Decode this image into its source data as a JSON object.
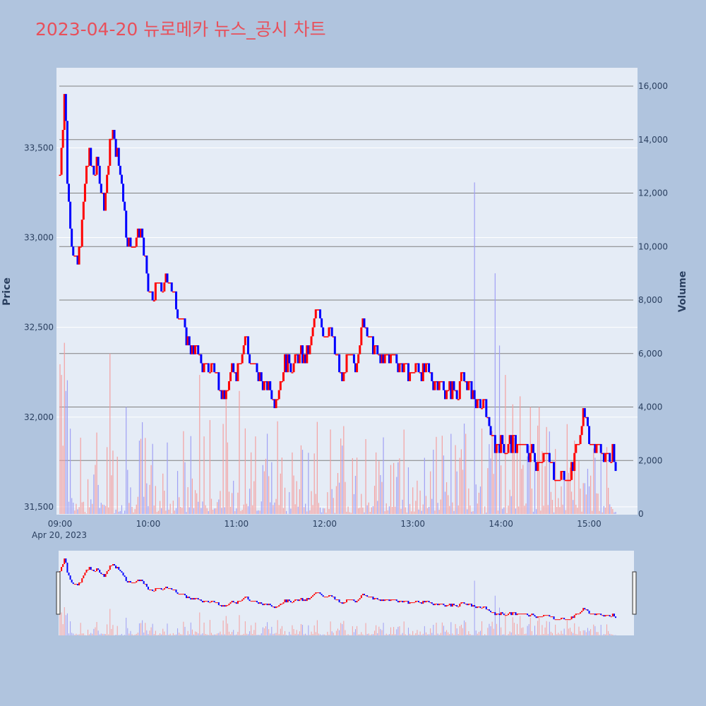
{
  "title": "2023-04-20 뉴로메카 뉴스_공시 차트",
  "colors": {
    "background": "#b0c4de",
    "plot_bg": "#e5ecf6",
    "up": "#ff0000",
    "down": "#0000ff",
    "up_volume": "#f4a0a0",
    "down_volume": "#a0a0f4",
    "title": "#e8505b",
    "grid": "#ffffff",
    "volume_grid": "#808080"
  },
  "chart_data": {
    "type": "candlestick",
    "x_range": [
      "09:00",
      "15:30"
    ],
    "date_label": "Apr 20, 2023",
    "x_ticks": [
      "09:00",
      "10:00",
      "11:00",
      "12:00",
      "13:00",
      "14:00",
      "15:00"
    ],
    "price_axis": {
      "label": "Price",
      "range": [
        31480,
        33950
      ],
      "ticks": [
        31500,
        32000,
        32500,
        33000,
        33500
      ],
      "tick_labels": [
        "31,500",
        "32,000",
        "32,500",
        "33,000",
        "33,500"
      ]
    },
    "volume_axis": {
      "label": "Volume",
      "range": [
        0,
        16000
      ],
      "ticks": [
        0,
        2000,
        4000,
        6000,
        8000,
        10000,
        12000,
        14000,
        16000
      ],
      "tick_labels": [
        "0",
        "2,000",
        "4,000",
        "6,000",
        "8,000",
        "10,000",
        "12,000",
        "14,000",
        "16,000"
      ]
    },
    "price_path": [
      [
        "09:00",
        33350
      ],
      [
        "09:02",
        33650
      ],
      [
        "09:03",
        33800
      ],
      [
        "09:04",
        33650
      ],
      [
        "09:05",
        33300
      ],
      [
        "09:08",
        33000
      ],
      [
        "09:10",
        32900
      ],
      [
        "09:12",
        32850
      ],
      [
        "09:15",
        33050
      ],
      [
        "09:18",
        33400
      ],
      [
        "09:20",
        33450
      ],
      [
        "09:23",
        33350
      ],
      [
        "09:26",
        33400
      ],
      [
        "09:28",
        33300
      ],
      [
        "09:30",
        33200
      ],
      [
        "09:33",
        33400
      ],
      [
        "09:35",
        33600
      ],
      [
        "09:38",
        33500
      ],
      [
        "09:42",
        33300
      ],
      [
        "09:45",
        33050
      ],
      [
        "09:48",
        32950
      ],
      [
        "09:52",
        33000
      ],
      [
        "09:55",
        33050
      ],
      [
        "09:58",
        32850
      ],
      [
        "10:00",
        32700
      ],
      [
        "10:03",
        32650
      ],
      [
        "10:06",
        32750
      ],
      [
        "10:10",
        32700
      ],
      [
        "10:14",
        32800
      ],
      [
        "10:17",
        32700
      ],
      [
        "10:20",
        32600
      ],
      [
        "10:23",
        32550
      ],
      [
        "10:26",
        32450
      ],
      [
        "10:30",
        32350
      ],
      [
        "10:33",
        32400
      ],
      [
        "10:36",
        32300
      ],
      [
        "10:40",
        32250
      ],
      [
        "10:43",
        32300
      ],
      [
        "10:46",
        32250
      ],
      [
        "10:50",
        32150
      ],
      [
        "10:53",
        32100
      ],
      [
        "10:56",
        32250
      ],
      [
        "11:00",
        32250
      ],
      [
        "11:03",
        32350
      ],
      [
        "11:06",
        32450
      ],
      [
        "11:10",
        32300
      ],
      [
        "11:14",
        32250
      ],
      [
        "11:18",
        32200
      ],
      [
        "11:22",
        32150
      ],
      [
        "11:26",
        32100
      ],
      [
        "11:30",
        32200
      ],
      [
        "11:33",
        32300
      ],
      [
        "11:36",
        32300
      ],
      [
        "11:40",
        32300
      ],
      [
        "11:43",
        32350
      ],
      [
        "11:46",
        32300
      ],
      [
        "11:50",
        32400
      ],
      [
        "11:53",
        32550
      ],
      [
        "11:56",
        32600
      ],
      [
        "12:00",
        32450
      ],
      [
        "12:03",
        32500
      ],
      [
        "12:06",
        32400
      ],
      [
        "12:09",
        32300
      ],
      [
        "12:12",
        32200
      ],
      [
        "12:15",
        32300
      ],
      [
        "12:18",
        32300
      ],
      [
        "12:21",
        32300
      ],
      [
        "12:24",
        32450
      ],
      [
        "12:27",
        32550
      ],
      [
        "12:30",
        32450
      ],
      [
        "12:33",
        32400
      ],
      [
        "12:36",
        32350
      ],
      [
        "12:40",
        32300
      ],
      [
        "12:43",
        32350
      ],
      [
        "12:46",
        32350
      ],
      [
        "12:50",
        32300
      ],
      [
        "12:53",
        32300
      ],
      [
        "12:56",
        32250
      ],
      [
        "13:00",
        32250
      ],
      [
        "13:03",
        32300
      ],
      [
        "13:06",
        32250
      ],
      [
        "13:10",
        32250
      ],
      [
        "13:14",
        32200
      ],
      [
        "13:18",
        32200
      ],
      [
        "13:22",
        32150
      ],
      [
        "13:26",
        32150
      ],
      [
        "13:30",
        32150
      ],
      [
        "13:33",
        32200
      ],
      [
        "13:36",
        32200
      ],
      [
        "13:40",
        32150
      ],
      [
        "13:44",
        32050
      ],
      [
        "13:47",
        32050
      ],
      [
        "13:50",
        32050
      ],
      [
        "13:53",
        31900
      ],
      [
        "13:56",
        31850
      ],
      [
        "14:00",
        31850
      ],
      [
        "14:03",
        31800
      ],
      [
        "14:06",
        31850
      ],
      [
        "14:09",
        31850
      ],
      [
        "14:12",
        31850
      ],
      [
        "14:15",
        31850
      ],
      [
        "14:18",
        31800
      ],
      [
        "14:21",
        31800
      ],
      [
        "14:24",
        31750
      ],
      [
        "14:27",
        31800
      ],
      [
        "14:30",
        31800
      ],
      [
        "14:33",
        31750
      ],
      [
        "14:36",
        31700
      ],
      [
        "14:39",
        31650
      ],
      [
        "14:42",
        31700
      ],
      [
        "14:45",
        31650
      ],
      [
        "14:48",
        31700
      ],
      [
        "14:51",
        31800
      ],
      [
        "14:54",
        31950
      ],
      [
        "14:57",
        32000
      ],
      [
        "15:00",
        31900
      ],
      [
        "15:03",
        31850
      ],
      [
        "15:06",
        31850
      ],
      [
        "15:09",
        31800
      ],
      [
        "15:12",
        31800
      ],
      [
        "15:15",
        31800
      ],
      [
        "15:18",
        31750
      ]
    ]
  }
}
